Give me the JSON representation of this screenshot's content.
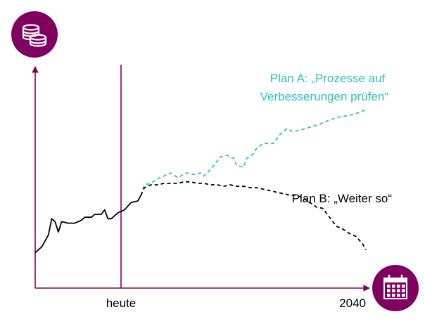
{
  "chart_data": {
    "type": "line",
    "xlabel_ticks": [
      "heute",
      "2040"
    ],
    "y_axis_icon": "coins-icon",
    "x_axis_icon": "calendar-icon",
    "colors": {
      "axis": "#800060",
      "today_line": "#800060",
      "history": "#000000",
      "plan_a": "#2ebfbf",
      "plan_b": "#000000",
      "icon_bg": "#800060"
    },
    "series": [
      {
        "key": "history",
        "style": "solid",
        "values": [
          [
            0,
            0.24
          ],
          [
            2,
            0.28
          ],
          [
            4,
            0.36
          ],
          [
            5,
            0.47
          ],
          [
            6,
            0.45
          ],
          [
            7,
            0.38
          ],
          [
            8,
            0.45
          ],
          [
            10,
            0.44
          ],
          [
            12,
            0.44
          ],
          [
            14,
            0.46
          ],
          [
            15,
            0.48
          ],
          [
            17,
            0.48
          ],
          [
            18,
            0.5
          ],
          [
            20,
            0.5
          ],
          [
            21,
            0.53
          ],
          [
            22,
            0.47
          ],
          [
            23,
            0.47
          ],
          [
            25,
            0.51
          ],
          [
            27,
            0.53
          ],
          [
            29,
            0.58
          ],
          [
            31,
            0.59
          ],
          [
            32,
            0.63
          ]
        ]
      },
      {
        "key": "plan_a",
        "name": "Plan A: „Prozesse auf Verbesserungen prüfen“",
        "style": "dashed",
        "values": [
          [
            32,
            0.63
          ],
          [
            33,
            0.7
          ],
          [
            35,
            0.71
          ],
          [
            37,
            0.74
          ],
          [
            39,
            0.76
          ],
          [
            41,
            0.78
          ],
          [
            43,
            0.75
          ],
          [
            46,
            0.78
          ],
          [
            48,
            0.77
          ],
          [
            50,
            0.78
          ],
          [
            51,
            0.76
          ],
          [
            52,
            0.78
          ],
          [
            54,
            0.83
          ],
          [
            56,
            0.89
          ],
          [
            58,
            0.9
          ],
          [
            60,
            0.88
          ],
          [
            61,
            0.83
          ],
          [
            63,
            0.82
          ],
          [
            64,
            0.88
          ],
          [
            66,
            0.91
          ],
          [
            67,
            0.95
          ],
          [
            69,
            0.98
          ],
          [
            72,
            0.98
          ],
          [
            74,
            1.04
          ],
          [
            76,
            1.08
          ],
          [
            78,
            1.06
          ],
          [
            80,
            1.07
          ],
          [
            83,
            1.09
          ],
          [
            86,
            1.11
          ],
          [
            89,
            1.14
          ],
          [
            92,
            1.16
          ],
          [
            95,
            1.17
          ],
          [
            98,
            1.19
          ],
          [
            100,
            1.21
          ]
        ]
      },
      {
        "key": "plan_b",
        "name": "Plan B: „Weiter so“",
        "style": "dashed",
        "values": [
          [
            32,
            0.63
          ],
          [
            33,
            0.68
          ],
          [
            35,
            0.7
          ],
          [
            37,
            0.7
          ],
          [
            39,
            0.71
          ],
          [
            41,
            0.71
          ],
          [
            43,
            0.71
          ],
          [
            45,
            0.72
          ],
          [
            47,
            0.72
          ],
          [
            49,
            0.71
          ],
          [
            51,
            0.71
          ],
          [
            53,
            0.7
          ],
          [
            55,
            0.7
          ],
          [
            57,
            0.69
          ],
          [
            59,
            0.7
          ],
          [
            61,
            0.69
          ],
          [
            63,
            0.69
          ],
          [
            65,
            0.68
          ],
          [
            67,
            0.68
          ],
          [
            69,
            0.67
          ],
          [
            71,
            0.66
          ],
          [
            73,
            0.65
          ],
          [
            75,
            0.64
          ],
          [
            77,
            0.63
          ],
          [
            79,
            0.63
          ],
          [
            81,
            0.61
          ],
          [
            83,
            0.58
          ],
          [
            85,
            0.55
          ],
          [
            87,
            0.54
          ],
          [
            89,
            0.48
          ],
          [
            91,
            0.42
          ],
          [
            93,
            0.4
          ],
          [
            95,
            0.37
          ],
          [
            97,
            0.35
          ],
          [
            99,
            0.3
          ],
          [
            100,
            0.26
          ]
        ]
      }
    ]
  }
}
